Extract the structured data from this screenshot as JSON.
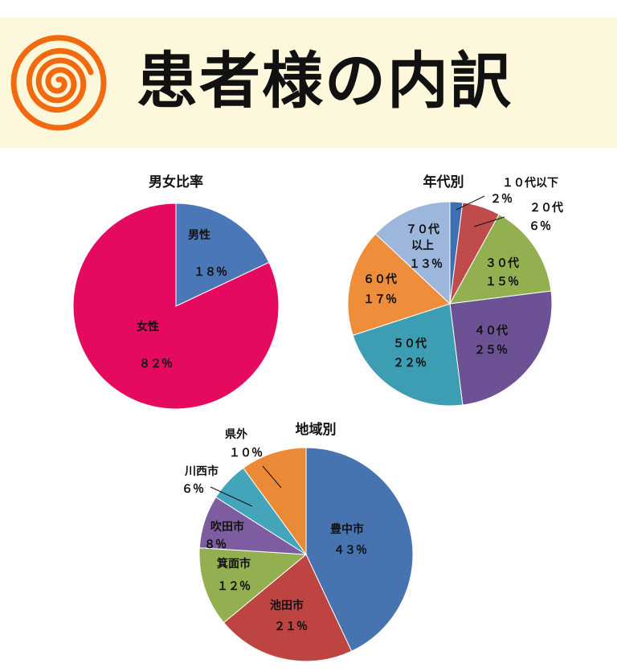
{
  "header": {
    "title": "患者様の内訳",
    "logo_icon": "orange-spiral-icon",
    "background": "#fdf7dc"
  },
  "chart_data": [
    {
      "type": "pie",
      "title": "男女比率",
      "start": "12 o'clock, clockwise",
      "slices": [
        {
          "name": "男性",
          "value": 18,
          "label": "１８％",
          "color": "#4a77b8"
        },
        {
          "name": "女性",
          "value": 82,
          "label": "８２％",
          "color": "#e5095f"
        }
      ]
    },
    {
      "type": "pie",
      "title": "年代別",
      "start": "12 o'clock, clockwise",
      "slices": [
        {
          "name": "１０代以下",
          "value": 2,
          "label": "２％",
          "color": "#3f6fb3"
        },
        {
          "name": "２０代",
          "value": 6,
          "label": "６％",
          "color": "#bf4c4a"
        },
        {
          "name": "３０代",
          "value": 15,
          "label": "１５％",
          "color": "#92b050"
        },
        {
          "name": "４０代",
          "value": 25,
          "label": "２５％",
          "color": "#6c5295"
        },
        {
          "name": "５０代",
          "value": 22,
          "label": "２２％",
          "color": "#3c9db3"
        },
        {
          "name": "６０代",
          "value": 17,
          "label": "１７％",
          "color": "#ee8e3a"
        },
        {
          "name": "７０代以上",
          "name_lines": [
            "７０代",
            "以上"
          ],
          "value": 13,
          "label": "１３％",
          "color": "#9db6dc"
        }
      ]
    },
    {
      "type": "pie",
      "title": "地域別",
      "start": "12 o'clock, clockwise",
      "slices": [
        {
          "name": "豊中市",
          "value": 43,
          "label": "４３％",
          "color": "#4774b0"
        },
        {
          "name": "池田市",
          "value": 21,
          "label": "２１％",
          "color": "#bd4440"
        },
        {
          "name": "箕面市",
          "value": 12,
          "label": "１２％",
          "color": "#92b050"
        },
        {
          "name": "吹田市",
          "value": 8,
          "label": "８％",
          "color": "#7d5ca0"
        },
        {
          "name": "川西市",
          "value": 6,
          "label": "６％",
          "color": "#44a4b9"
        },
        {
          "name": "県外",
          "value": 10,
          "label": "１０％",
          "color": "#eb8a36"
        }
      ]
    }
  ]
}
